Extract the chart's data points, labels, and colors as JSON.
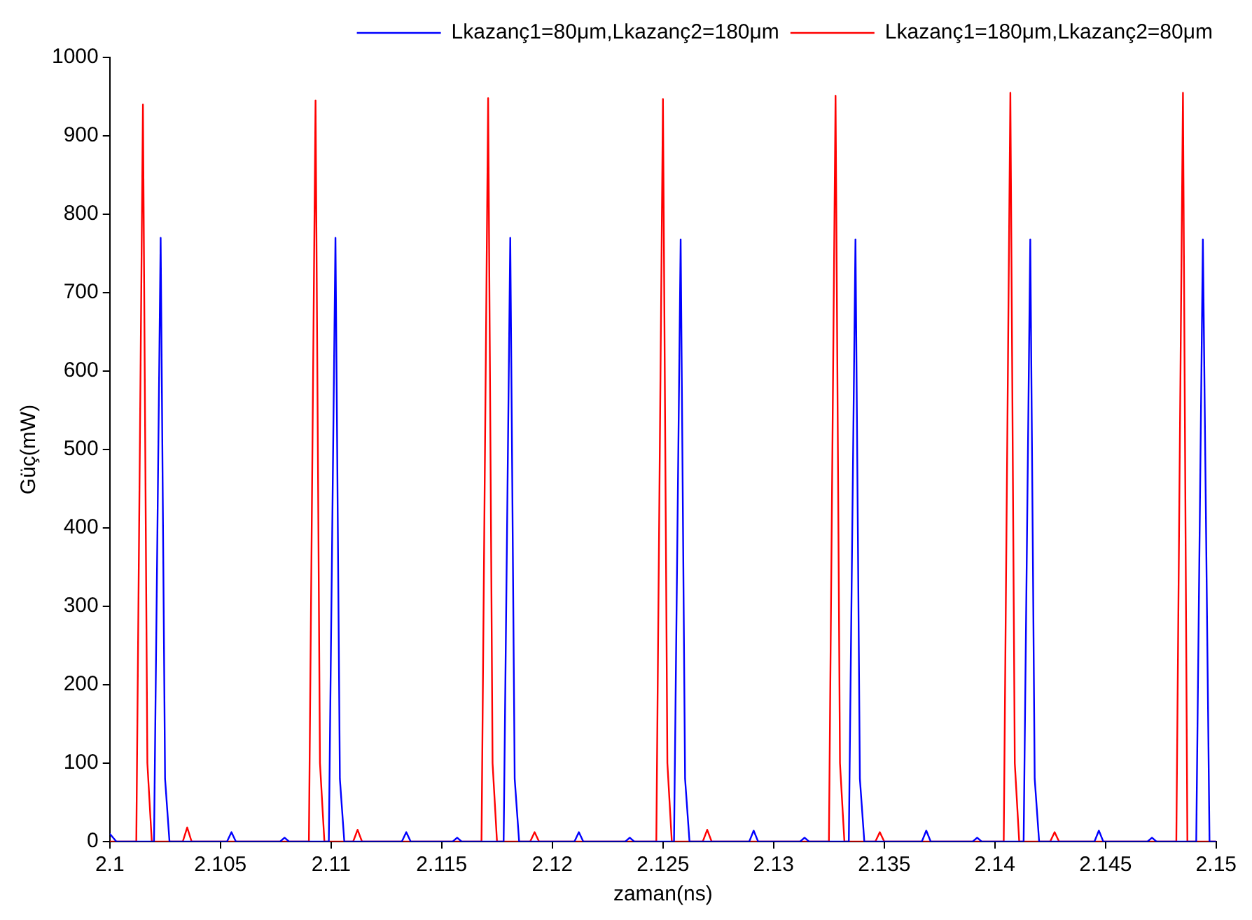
{
  "chart_data": {
    "type": "line",
    "xlabel": "zaman(ns)",
    "ylabel": "Güç(mW)",
    "xlim": [
      2.1,
      2.15
    ],
    "ylim": [
      0,
      1000
    ],
    "xticks": [
      2.1,
      2.105,
      2.11,
      2.115,
      2.12,
      2.125,
      2.13,
      2.135,
      2.14,
      2.145,
      2.15
    ],
    "yticks": [
      0,
      100,
      200,
      300,
      400,
      500,
      600,
      700,
      800,
      900,
      1000
    ],
    "grid": false,
    "legend": "top right",
    "marker": "none",
    "line_style": "solid",
    "series": [
      {
        "name": "Lkazanç1=80μm,Lkazanç2=180μm",
        "color": "#0000ff",
        "x": [
          2.1,
          2.1003,
          2.102,
          2.1023,
          2.1025,
          2.1027,
          2.1053,
          2.1055,
          2.1057,
          2.1077,
          2.1079,
          2.1081,
          2.1099,
          2.1102,
          2.1104,
          2.1106,
          2.1132,
          2.1134,
          2.1136,
          2.1155,
          2.1157,
          2.1159,
          2.1178,
          2.1181,
          2.1183,
          2.1185,
          2.121,
          2.1212,
          2.1214,
          2.1233,
          2.1235,
          2.1237,
          2.1255,
          2.1258,
          2.126,
          2.1262,
          2.1289,
          2.1291,
          2.1293,
          2.1312,
          2.1314,
          2.1316,
          2.1334,
          2.1337,
          2.1339,
          2.1341,
          2.1367,
          2.1369,
          2.1371,
          2.139,
          2.1392,
          2.1394,
          2.1413,
          2.1416,
          2.1418,
          2.142,
          2.1445,
          2.1447,
          2.1449,
          2.1469,
          2.1471,
          2.1473,
          2.1491,
          2.1494,
          2.1497,
          2.15
        ],
        "values": [
          10,
          0,
          0,
          770,
          80,
          0,
          0,
          12,
          0,
          0,
          5,
          0,
          0,
          770,
          80,
          0,
          0,
          12,
          0,
          0,
          5,
          0,
          0,
          770,
          80,
          0,
          0,
          12,
          0,
          0,
          5,
          0,
          0,
          768,
          80,
          0,
          0,
          14,
          0,
          0,
          5,
          0,
          0,
          768,
          80,
          0,
          0,
          14,
          0,
          0,
          5,
          0,
          0,
          768,
          80,
          0,
          0,
          14,
          0,
          0,
          5,
          0,
          0,
          768,
          0,
          0
        ]
      },
      {
        "name": "Lkazanç1=180μm,Lkazanç2=80μm",
        "color": "#ff0000",
        "x": [
          2.1,
          2.1012,
          2.1015,
          2.1017,
          2.1019,
          2.1033,
          2.1035,
          2.1037,
          2.109,
          2.1093,
          2.1095,
          2.1097,
          2.111,
          2.1112,
          2.1114,
          2.1168,
          2.1171,
          2.1173,
          2.1175,
          2.119,
          2.1192,
          2.1194,
          2.1247,
          2.125,
          2.1252,
          2.1254,
          2.1268,
          2.127,
          2.1272,
          2.1325,
          2.1328,
          2.133,
          2.1332,
          2.1346,
          2.1348,
          2.135,
          2.1404,
          2.1407,
          2.1409,
          2.1411,
          2.1425,
          2.1427,
          2.1429,
          2.1482,
          2.1485,
          2.1487,
          2.15
        ],
        "values": [
          0,
          0,
          940,
          100,
          0,
          0,
          18,
          0,
          0,
          945,
          100,
          0,
          0,
          15,
          0,
          0,
          948,
          100,
          0,
          0,
          12,
          0,
          0,
          947,
          100,
          0,
          0,
          15,
          0,
          0,
          951,
          100,
          0,
          0,
          12,
          0,
          0,
          955,
          100,
          0,
          0,
          12,
          0,
          0,
          955,
          0,
          0
        ]
      }
    ]
  }
}
